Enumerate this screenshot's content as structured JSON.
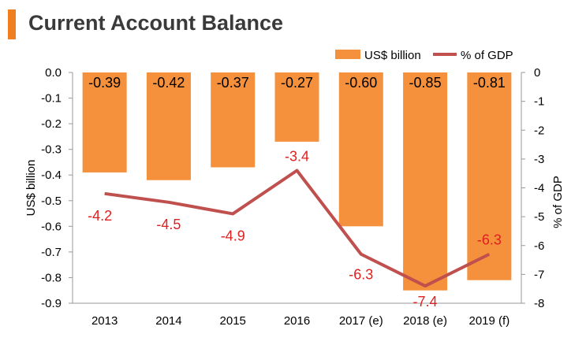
{
  "title": "Current Account Balance",
  "colors": {
    "bar": "#f5913c",
    "line": "#c0504d",
    "line_label": "#e02020",
    "accent": "#f07f22",
    "axis": "#999999",
    "text": "#000000"
  },
  "chart_data": {
    "type": "bar",
    "categories": [
      "2013",
      "2014",
      "2015",
      "2016",
      "2017 (e)",
      "2018 (e)",
      "2019 (f)"
    ],
    "series": [
      {
        "name": "US$ billion",
        "type": "bar",
        "axis": "left",
        "values": [
          -0.39,
          -0.42,
          -0.37,
          -0.27,
          -0.6,
          -0.85,
          -0.81
        ],
        "labels": [
          "-0.39",
          "-0.42",
          "-0.37",
          "-0.27",
          "-0.60",
          "-0.85",
          "-0.81"
        ]
      },
      {
        "name": "% of GDP",
        "type": "line",
        "axis": "right",
        "values": [
          -4.2,
          -4.5,
          -4.9,
          -3.4,
          -6.3,
          -7.4,
          -6.3
        ],
        "labels": [
          "-4.2",
          "-4.5",
          "-4.9",
          "-3.4",
          "-6.3",
          "-7.4",
          "-6.3"
        ]
      }
    ],
    "ylabel": "US$ billion",
    "y2label": "% of GDP",
    "ylim": [
      -0.9,
      0.0
    ],
    "y2lim": [
      -8,
      0
    ],
    "yticks": [
      "0.0",
      "-0.1",
      "-0.2",
      "-0.3",
      "-0.4",
      "-0.5",
      "-0.6",
      "-0.7",
      "-0.8",
      "-0.9"
    ],
    "y2ticks": [
      "0",
      "-1",
      "-2",
      "-3",
      "-4",
      "-5",
      "-6",
      "-7",
      "-8"
    ],
    "legend": "top-right",
    "grid": false
  }
}
